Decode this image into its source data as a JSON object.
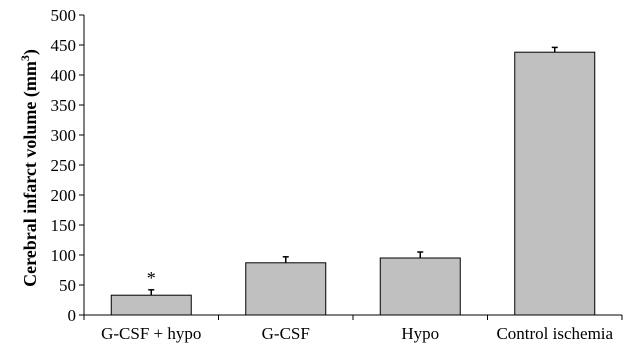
{
  "chart_data": {
    "type": "bar",
    "title": "",
    "xlabel": "",
    "ylabel": "Cerebral infarct volume (mm",
    "ylabel_superscript": "3",
    "ylabel_suffix": ")",
    "ylim": [
      0,
      500
    ],
    "yticks": [
      0,
      50,
      100,
      150,
      200,
      250,
      300,
      350,
      400,
      450,
      500
    ],
    "grid": false,
    "categories": [
      "G-CSF + hypo",
      "G-CSF",
      "Hypo",
      "Control ischemia"
    ],
    "values": [
      33,
      87,
      95,
      438
    ],
    "errors": [
      9,
      10,
      10,
      8
    ],
    "annotations": [
      "*",
      "",
      "",
      ""
    ],
    "bar_color": "#c0c0c0",
    "bar_edge_color": "#000000"
  }
}
